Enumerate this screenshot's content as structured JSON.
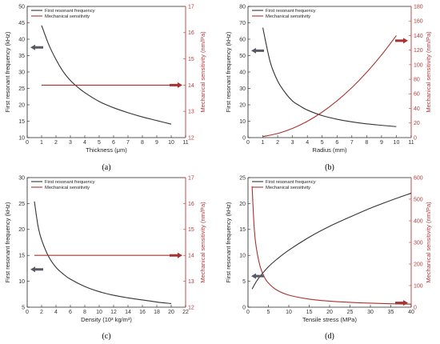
{
  "colors": {
    "black_series": "#333333",
    "red_series": "#a8322d",
    "right_axis": "#b83a3a",
    "arrow": "#555a66"
  },
  "chart_data": [
    {
      "type": "line",
      "label": "(a)",
      "xlabel": "Thickness (μm)",
      "ylabel_left": "First resonant frequency (kHz)",
      "ylabel_right": "Mechanical sensitivity (nm/Pa)",
      "xlim": [
        0,
        11
      ],
      "x_ticks": [
        0,
        1,
        2,
        3,
        4,
        5,
        6,
        7,
        8,
        9,
        10,
        11
      ],
      "ylim_left": [
        10,
        50
      ],
      "y_ticks_left": [
        10,
        15,
        20,
        25,
        30,
        35,
        40,
        45,
        50
      ],
      "ylim_right": [
        12,
        17
      ],
      "y_ticks_right": [
        12,
        13,
        14,
        15,
        16,
        17
      ],
      "grid": false,
      "legend": "top-left",
      "arrows": [
        {
          "axis": "left",
          "y": 37.5
        },
        {
          "axis": "right",
          "y": 14.0
        }
      ],
      "series": [
        {
          "name": "First resonant frequency",
          "axis": "left",
          "x": [
            1,
            1.5,
            2,
            2.5,
            3,
            3.5,
            4,
            5,
            6,
            7,
            8,
            9,
            10
          ],
          "y": [
            44.2,
            38.3,
            33.8,
            30.1,
            27.4,
            25.4,
            23.7,
            21.0,
            19.1,
            17.6,
            16.3,
            15.2,
            14.1
          ]
        },
        {
          "name": "Mechanical sensitivity",
          "axis": "right",
          "x": [
            1,
            10
          ],
          "y": [
            14.0,
            14.0
          ]
        }
      ]
    },
    {
      "type": "line",
      "label": "(b)",
      "xlabel": "Radius (mm)",
      "ylabel_left": "First resonant frequency (kHz)",
      "ylabel_right": "Mechanical sensitivity (nm/Pa)",
      "xlim": [
        0,
        11
      ],
      "x_ticks": [
        0,
        1,
        2,
        3,
        4,
        5,
        6,
        7,
        8,
        9,
        10,
        11
      ],
      "ylim_left": [
        0,
        80
      ],
      "y_ticks_left": [
        0,
        10,
        20,
        30,
        40,
        50,
        60,
        70,
        80
      ],
      "ylim_right": [
        0,
        180
      ],
      "y_ticks_right": [
        0,
        20,
        40,
        60,
        80,
        100,
        120,
        140,
        160,
        180
      ],
      "grid": false,
      "legend": "top-left",
      "arrows": [
        {
          "axis": "left",
          "y": 53
        },
        {
          "axis": "right",
          "y": 133
        }
      ],
      "series": [
        {
          "name": "First resonant frequency",
          "axis": "left",
          "x": [
            1,
            1.5,
            2,
            2.5,
            3,
            3.5,
            4,
            5,
            6,
            7,
            8,
            9,
            10
          ],
          "y": [
            67,
            46,
            34.5,
            27.5,
            22.3,
            19.3,
            16.8,
            13.4,
            11.2,
            9.6,
            8.4,
            7.5,
            6.7
          ]
        },
        {
          "name": "Mechanical sensitivity",
          "axis": "right",
          "x": [
            1,
            2,
            3,
            4,
            5,
            6,
            7,
            8,
            9,
            10
          ],
          "y": [
            1.4,
            5.6,
            12.6,
            22.4,
            35,
            50.4,
            68.6,
            89.6,
            113.4,
            140
          ]
        }
      ]
    },
    {
      "type": "line",
      "label": "(c)",
      "xlabel": "Density (10³ kg/m³)",
      "ylabel_left": "First resonant frequency (kHz)",
      "ylabel_right": "Mechanical sensitivity (nm/Pa)",
      "xlim": [
        0,
        22
      ],
      "x_ticks": [
        0,
        2,
        4,
        6,
        8,
        10,
        12,
        14,
        16,
        18,
        20,
        22
      ],
      "ylim_left": [
        5,
        30
      ],
      "y_ticks_left": [
        5,
        10,
        15,
        20,
        25,
        30
      ],
      "ylim_right": [
        12,
        17
      ],
      "y_ticks_right": [
        12,
        13,
        14,
        15,
        16,
        17
      ],
      "grid": false,
      "legend": "top-left",
      "arrows": [
        {
          "axis": "left",
          "y": 12.3
        },
        {
          "axis": "right",
          "y": 14.0
        }
      ],
      "series": [
        {
          "name": "First resonant frequency",
          "axis": "left",
          "x": [
            1,
            1.5,
            2,
            3,
            4,
            5,
            6,
            8,
            10,
            12,
            14,
            16,
            18,
            20
          ],
          "y": [
            25.4,
            20.7,
            18.0,
            14.7,
            12.7,
            11.4,
            10.4,
            9.0,
            8.0,
            7.3,
            6.8,
            6.4,
            6.0,
            5.7
          ]
        },
        {
          "name": "Mechanical sensitivity",
          "axis": "right",
          "x": [
            1,
            20
          ],
          "y": [
            14.0,
            14.0
          ]
        }
      ]
    },
    {
      "type": "line",
      "label": "(d)",
      "xlabel": "Tensile stress (MPa)",
      "ylabel_left": "First resonant frequency (kHz)",
      "ylabel_right": "Mechanical sensitivity (nm/Pa)",
      "xlim": [
        0,
        40
      ],
      "x_ticks": [
        0,
        5,
        10,
        15,
        20,
        25,
        30,
        35,
        40
      ],
      "ylim_left": [
        0,
        25
      ],
      "y_ticks_left": [
        0,
        5,
        10,
        15,
        20,
        25
      ],
      "ylim_right": [
        0,
        600
      ],
      "y_ticks_right": [
        0,
        100,
        200,
        300,
        400,
        500,
        600
      ],
      "grid": false,
      "legend": "top-left",
      "arrows": [
        {
          "axis": "left",
          "y": 6
        },
        {
          "axis": "right",
          "y": 20
        }
      ],
      "series": [
        {
          "name": "First resonant frequency",
          "axis": "left",
          "x": [
            1,
            2,
            3,
            5,
            7,
            10,
            15,
            20,
            25,
            30,
            35,
            40
          ],
          "y": [
            3.5,
            4.9,
            6.0,
            7.8,
            9.2,
            11.0,
            13.5,
            15.6,
            17.4,
            19.1,
            20.6,
            22.0
          ]
        },
        {
          "name": "Mechanical sensitivity",
          "axis": "right",
          "x": [
            1,
            1.5,
            2,
            3,
            4,
            5,
            7,
            10,
            15,
            20,
            25,
            30,
            35,
            40
          ],
          "y": [
            560,
            373,
            280,
            187,
            140,
            112,
            80,
            56,
            37.3,
            28,
            22.4,
            18.7,
            16,
            14
          ]
        }
      ]
    }
  ]
}
